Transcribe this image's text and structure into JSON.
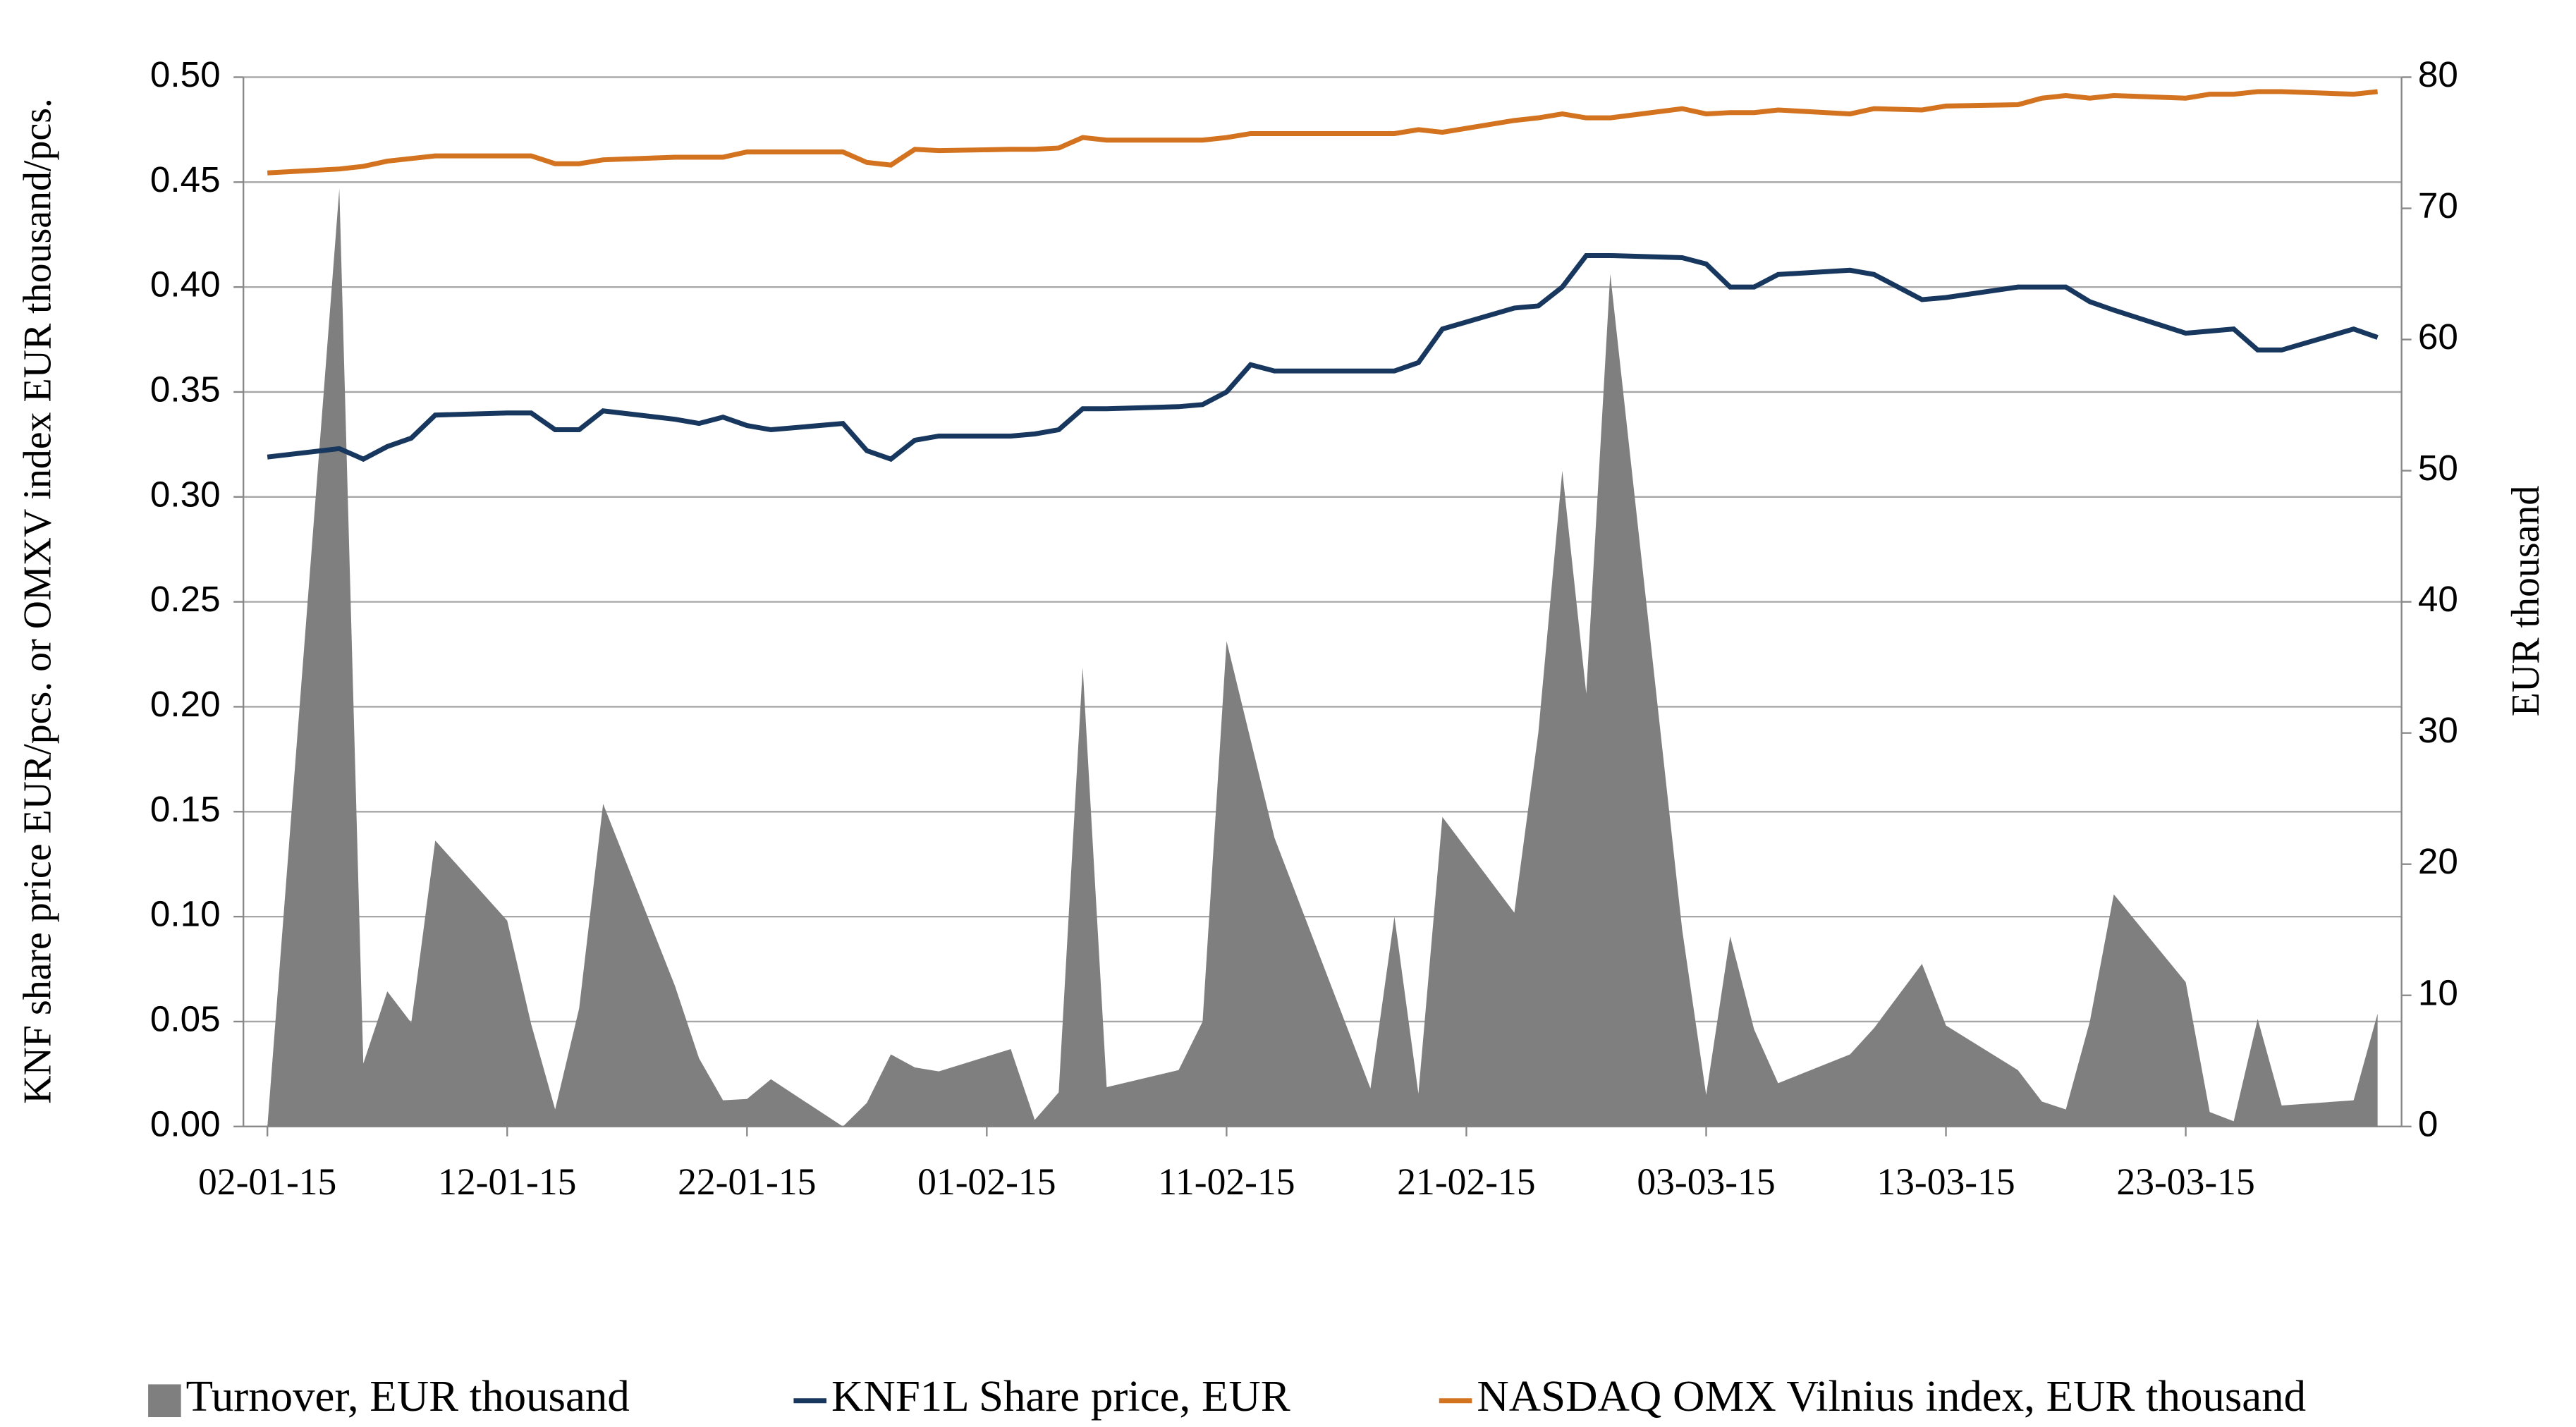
{
  "chart_data": {
    "type": "line",
    "y_label": "KNF share price EUR/pcs. or OMXV index EUR thousand/pcs.",
    "y2_label": "EUR thousand",
    "x": [
      "2015-01-02",
      "2015-01-05",
      "2015-01-06",
      "2015-01-07",
      "2015-01-08",
      "2015-01-09",
      "2015-01-12",
      "2015-01-13",
      "2015-01-14",
      "2015-01-15",
      "2015-01-16",
      "2015-01-19",
      "2015-01-20",
      "2015-01-21",
      "2015-01-22",
      "2015-01-23",
      "2015-01-26",
      "2015-01-27",
      "2015-01-28",
      "2015-01-29",
      "2015-01-30",
      "2015-02-02",
      "2015-02-03",
      "2015-02-04",
      "2015-02-05",
      "2015-02-06",
      "2015-02-09",
      "2015-02-10",
      "2015-02-11",
      "2015-02-12",
      "2015-02-13",
      "2015-02-17",
      "2015-02-18",
      "2015-02-19",
      "2015-02-20",
      "2015-02-23",
      "2015-02-24",
      "2015-02-25",
      "2015-02-26",
      "2015-02-27",
      "2015-03-02",
      "2015-03-03",
      "2015-03-04",
      "2015-03-05",
      "2015-03-06",
      "2015-03-09",
      "2015-03-10",
      "2015-03-12",
      "2015-03-13",
      "2015-03-16",
      "2015-03-17",
      "2015-03-18",
      "2015-03-19",
      "2015-03-20",
      "2015-03-23",
      "2015-03-24",
      "2015-03-25",
      "2015-03-26",
      "2015-03-27",
      "2015-03-30",
      "2015-03-31"
    ],
    "series": [
      {
        "name": "Turnover, EUR thousand",
        "type": "area",
        "axis": "y2",
        "color": "#7f7f7f",
        "values": [
          0,
          71.5,
          4.8,
          10.3,
          7.9,
          21.8,
          15.7,
          7.8,
          1.3,
          9,
          24.6,
          10.7,
          5.2,
          2,
          2.1,
          3.6,
          0,
          1.8,
          5.5,
          4.5,
          4.2,
          5.9,
          0.5,
          2.6,
          35,
          3,
          4.3,
          8,
          37,
          29.5,
          22,
          2.9,
          16,
          2.5,
          23.6,
          16.3,
          30,
          50,
          33,
          65,
          15,
          2.4,
          14.5,
          7.4,
          3.3,
          5.5,
          7.5,
          12.4,
          7.7,
          4.3,
          1.9,
          1.3,
          8,
          17.7,
          11,
          1.1,
          0.4,
          8.2,
          1.6,
          2,
          8.6
        ]
      },
      {
        "name": "KNF1L Share price, EUR",
        "type": "line",
        "axis": "y",
        "color": "#17375e",
        "values": [
          0.319,
          0.323,
          0.318,
          0.324,
          0.328,
          0.339,
          0.34,
          0.34,
          0.332,
          0.332,
          0.341,
          0.337,
          0.335,
          0.338,
          0.334,
          0.332,
          0.335,
          0.322,
          0.318,
          0.327,
          0.329,
          0.329,
          0.33,
          0.332,
          0.342,
          0.342,
          0.343,
          0.344,
          0.35,
          0.363,
          0.36,
          0.36,
          0.36,
          0.364,
          0.38,
          0.39,
          0.391,
          0.4,
          0.415,
          0.415,
          0.414,
          0.411,
          0.4,
          0.4,
          0.406,
          0.408,
          0.406,
          0.394,
          0.395,
          0.4,
          0.4,
          0.4,
          0.393,
          0.389,
          0.378,
          0.379,
          0.38,
          0.37,
          0.37,
          0.38,
          0.376
        ]
      },
      {
        "name": "NASDAQ OMX Vilnius index, EUR thousand",
        "type": "line",
        "axis": "y2",
        "color": "#d4731f",
        "values": [
          72.7,
          73.0,
          73.2,
          73.6,
          73.8,
          74.0,
          74.0,
          74.0,
          73.4,
          73.4,
          73.7,
          73.9,
          73.9,
          73.9,
          74.3,
          74.3,
          74.3,
          73.5,
          73.3,
          74.5,
          74.4,
          74.5,
          74.5,
          74.6,
          75.4,
          75.2,
          75.2,
          75.2,
          75.4,
          75.7,
          75.7,
          75.7,
          75.7,
          76.0,
          75.8,
          76.7,
          76.9,
          77.2,
          76.9,
          76.9,
          77.6,
          77.2,
          77.3,
          77.3,
          77.5,
          77.2,
          77.6,
          77.5,
          77.8,
          77.9,
          78.4,
          78.6,
          78.4,
          78.6,
          78.4,
          78.7,
          78.7,
          78.9,
          78.9,
          78.7,
          78.9
        ]
      }
    ],
    "xlim": [
      "2015-01-01",
      "2015-04-01"
    ],
    "xticks": [
      {
        "value": "2015-01-02",
        "label": "02-01-15"
      },
      {
        "value": "2015-01-12",
        "label": "12-01-15"
      },
      {
        "value": "2015-01-22",
        "label": "22-01-15"
      },
      {
        "value": "2015-02-01",
        "label": "01-02-15"
      },
      {
        "value": "2015-02-11",
        "label": "11-02-15"
      },
      {
        "value": "2015-02-21",
        "label": "21-02-15"
      },
      {
        "value": "2015-03-03",
        "label": "03-03-15"
      },
      {
        "value": "2015-03-13",
        "label": "13-03-15"
      },
      {
        "value": "2015-03-23",
        "label": "23-03-15"
      }
    ],
    "ylim": [
      0,
      0.5
    ],
    "yticks": [
      {
        "value": 0,
        "label": "0.00"
      },
      {
        "value": 0.05,
        "label": "0.05"
      },
      {
        "value": 0.1,
        "label": "0.10"
      },
      {
        "value": 0.15,
        "label": "0.15"
      },
      {
        "value": 0.2,
        "label": "0.20"
      },
      {
        "value": 0.25,
        "label": "0.25"
      },
      {
        "value": 0.3,
        "label": "0.30"
      },
      {
        "value": 0.35,
        "label": "0.35"
      },
      {
        "value": 0.4,
        "label": "0.40"
      },
      {
        "value": 0.45,
        "label": "0.45"
      },
      {
        "value": 0.5,
        "label": "0.50"
      }
    ],
    "y2lim": [
      0,
      80
    ],
    "y2ticks": [
      0,
      10,
      20,
      30,
      40,
      50,
      60,
      70,
      80
    ],
    "grid": true,
    "legend": "bottom"
  }
}
